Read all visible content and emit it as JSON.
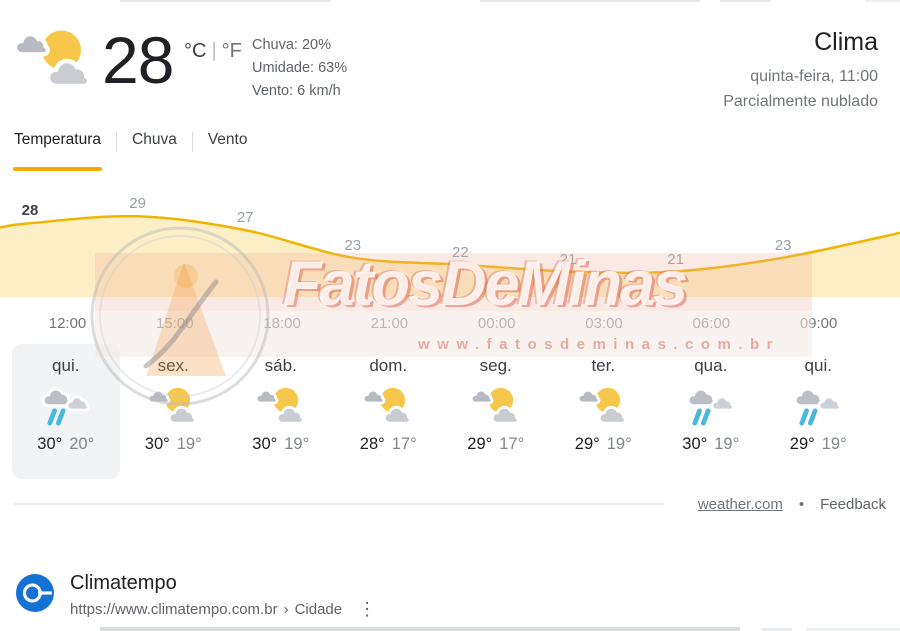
{
  "header": {
    "icon_key": "partly-cloudy",
    "temperature": "28",
    "unit_c": "°C",
    "unit_f": "°F",
    "details": [
      "Chuva: 20%",
      "Umidade: 63%",
      "Vento: 6 km/h"
    ]
  },
  "title_block": {
    "title": "Clima",
    "subtitle": "quinta-feira, 11:00",
    "condition": "Parcialmente nublado"
  },
  "tabs": [
    {
      "label": "Temperatura",
      "active": true
    },
    {
      "label": "Chuva",
      "active": false
    },
    {
      "label": "Vento",
      "active": false
    }
  ],
  "chart_data": {
    "type": "area",
    "title": "Temperatura",
    "x": [
      "12:00",
      "15:00",
      "18:00",
      "21:00",
      "00:00",
      "03:00",
      "06:00",
      "09:00"
    ],
    "series": [
      {
        "name": "Temperatura (°C)",
        "values": [
          28,
          29,
          27,
          23,
          22,
          21,
          21,
          23
        ]
      }
    ],
    "ylim": [
      21,
      29
    ],
    "grid": false,
    "legend": false,
    "line_color": "#f1b500",
    "fill_color": "#fcefc6",
    "line_edge_temps": [
      27.4,
      26.6
    ]
  },
  "watermark": {
    "text": "FatosDeMinas",
    "url": "www.fatosdeminas.com.br"
  },
  "forecast": {
    "days": [
      {
        "label": "qui.",
        "icon_key": "rain",
        "high": "30°",
        "low": "20°",
        "active": true
      },
      {
        "label": "sex.",
        "icon_key": "partly-cloudy",
        "high": "30°",
        "low": "19°",
        "active": false
      },
      {
        "label": "sáb.",
        "icon_key": "partly-cloudy",
        "high": "30°",
        "low": "19°",
        "active": false
      },
      {
        "label": "dom.",
        "icon_key": "partly-cloudy",
        "high": "28°",
        "low": "17°",
        "active": false
      },
      {
        "label": "seg.",
        "icon_key": "partly-cloudy",
        "high": "29°",
        "low": "17°",
        "active": false
      },
      {
        "label": "ter.",
        "icon_key": "partly-cloudy",
        "high": "29°",
        "low": "19°",
        "active": false
      },
      {
        "label": "qua.",
        "icon_key": "rain",
        "high": "30°",
        "low": "19°",
        "active": false
      },
      {
        "label": "qui.",
        "icon_key": "rain",
        "high": "29°",
        "low": "19°",
        "active": false
      }
    ]
  },
  "footer": {
    "source": "weather.com",
    "separator": "•",
    "feedback": "Feedback"
  },
  "result": {
    "site": "Climatempo",
    "url": "https://www.climatempo.com.br",
    "chevron": "›",
    "path": "Cidade"
  }
}
